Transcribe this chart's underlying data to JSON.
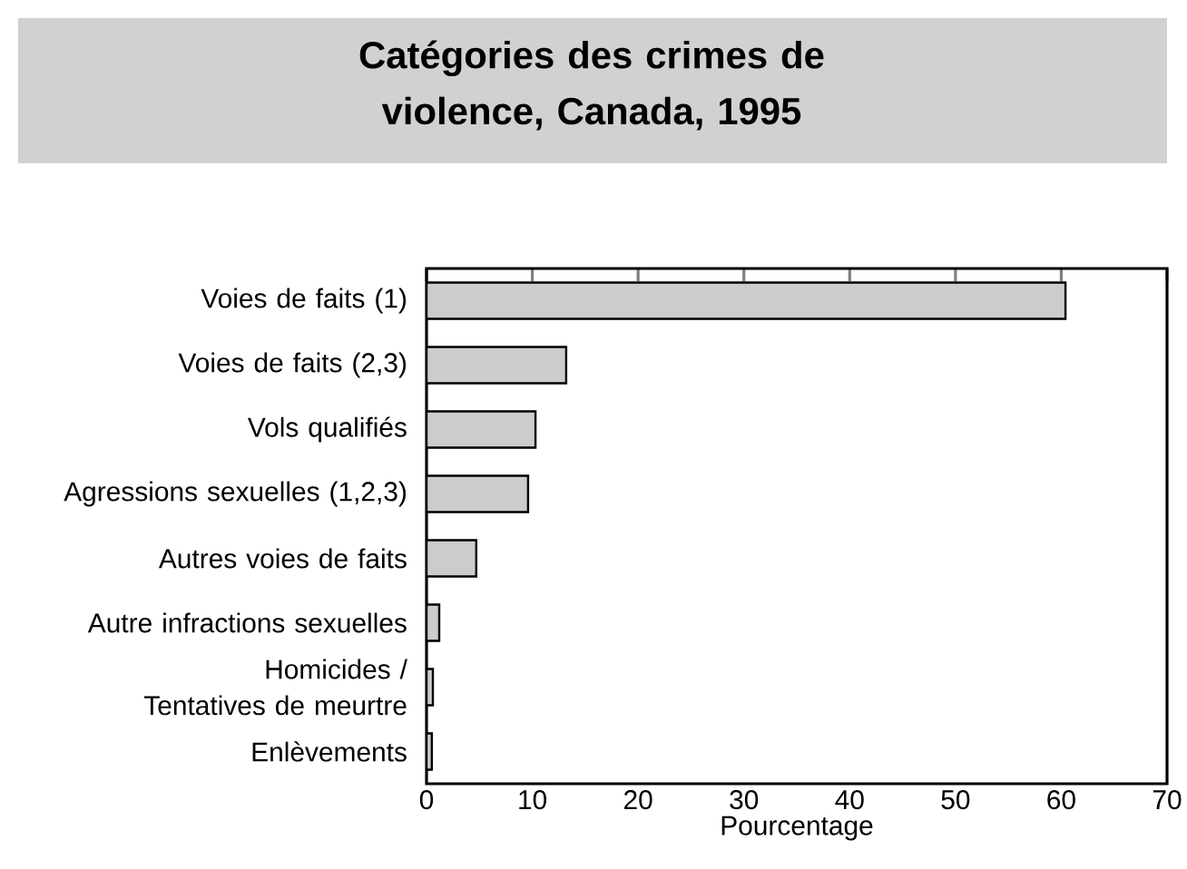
{
  "chart_data": {
    "type": "bar",
    "orientation": "horizontal",
    "title": "Catégories des crimes de violence, Canada, 1995",
    "xlabel": "Pourcentage",
    "categories": [
      "Voies de faits (1)",
      "Voies de faits (2,3)",
      "Vols qualifiés",
      "Agressions sexuelles (1,2,3)",
      "Autres voies de faits",
      "Autre infractions sexuelles",
      "Homicides / Tentatives de meurtre",
      "Enlèvements"
    ],
    "values": [
      60.4,
      13.2,
      10.3,
      9.6,
      4.7,
      1.2,
      0.6,
      0.5
    ],
    "color": "#cccccc",
    "xlim": [
      0,
      70
    ],
    "xticks": [
      0,
      10,
      20,
      30,
      40,
      50,
      60,
      70
    ],
    "grid": false
  }
}
